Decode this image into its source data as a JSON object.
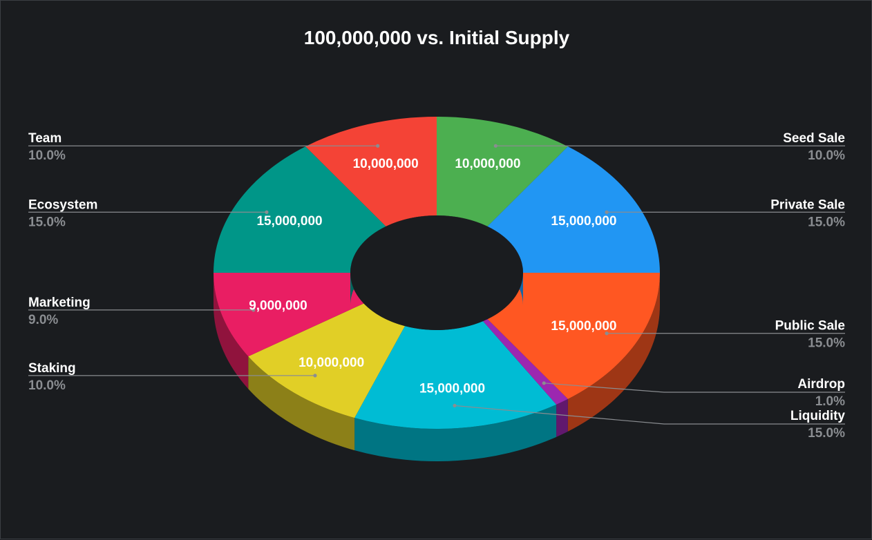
{
  "chart_data": {
    "type": "pie",
    "title": "100,000,000 vs. Initial Supply",
    "hole": true,
    "three_d": true,
    "legend_position": "sides",
    "slices": [
      {
        "name": "Seed Sale",
        "value": 10000000,
        "label": "10,000,000",
        "percent": "10.0%",
        "color": "#4caf50"
      },
      {
        "name": "Private Sale",
        "value": 15000000,
        "label": "15,000,000",
        "percent": "15.0%",
        "color": "#2196f3"
      },
      {
        "name": "Public Sale",
        "value": 15000000,
        "label": "15,000,000",
        "percent": "15.0%",
        "color": "#ff5722"
      },
      {
        "name": "Airdrop",
        "value": 1000000,
        "label": "",
        "percent": "1.0%",
        "color": "#9c27b0"
      },
      {
        "name": "Liquidity",
        "value": 15000000,
        "label": "15,000,000",
        "percent": "15.0%",
        "color": "#00bcd4"
      },
      {
        "name": "Staking",
        "value": 10000000,
        "label": "10,000,000",
        "percent": "10.0%",
        "color": "#e1cf26"
      },
      {
        "name": "Marketing",
        "value": 9000000,
        "label": "9,000,000",
        "percent": "9.0%",
        "color": "#e91e63"
      },
      {
        "name": "Ecosystem",
        "value": 15000000,
        "label": "15,000,000",
        "percent": "15.0%",
        "color": "#009688"
      },
      {
        "name": "Team",
        "value": 10000000,
        "label": "10,000,000",
        "percent": "10.0%",
        "color": "#f44336"
      }
    ]
  }
}
